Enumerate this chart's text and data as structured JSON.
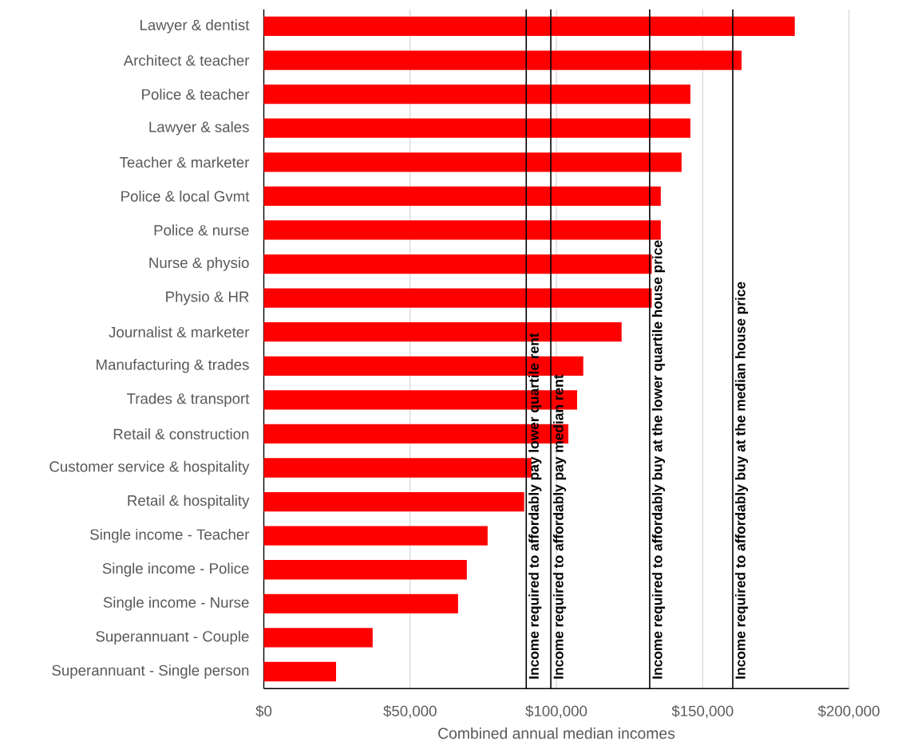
{
  "chart_data": {
    "type": "bar",
    "orientation": "horizontal",
    "xlabel": "Combined annual median incomes",
    "categories": [
      "Lawyer & dentist",
      "Architect & teacher",
      "Police & teacher",
      "Lawyer & sales",
      "Teacher & marketer",
      "Police & local Gvmt",
      "Police & nurse",
      "Nurse & physio",
      "Physio & HR",
      "Journalist & marketer",
      "Manufacturing & trades",
      "Trades & transport",
      "Retail & construction",
      "Customer service & hospitality",
      "Retail & hospitality",
      "Single income - Teacher",
      "Single income - Police",
      "Single income - Nurse",
      "Superannuant - Couple",
      "Superannuant - Single person"
    ],
    "values": [
      181500,
      163300,
      145800,
      145800,
      142800,
      135700,
      135700,
      132600,
      132600,
      122300,
      109200,
      107100,
      104100,
      91500,
      89000,
      76500,
      69400,
      66400,
      37200,
      24700
    ],
    "color": "#ff0000",
    "xlim": [
      0,
      200000
    ],
    "xticks": [
      {
        "value": 0,
        "label": "$0"
      },
      {
        "value": 50000,
        "label": "$50,000"
      },
      {
        "value": 100000,
        "label": "$100,000"
      },
      {
        "value": 150000,
        "label": "$150,000"
      },
      {
        "value": 200000,
        "label": "$200,000"
      }
    ],
    "grid": "x",
    "ref_lines": [
      {
        "axis": "x",
        "value": 89700,
        "label": "Income required to affordably pay lower quartile rent",
        "color": "#000000"
      },
      {
        "axis": "x",
        "value": 98100,
        "label": "Income required to affordably pay median rent",
        "color": "#000000"
      },
      {
        "axis": "x",
        "value": 131900,
        "label": "Income required to affordably buy at the lower quartile house price",
        "color": "#000000"
      },
      {
        "axis": "x",
        "value": 160300,
        "label": "Income required to affordably buy at the median house price",
        "color": "#000000"
      }
    ]
  }
}
